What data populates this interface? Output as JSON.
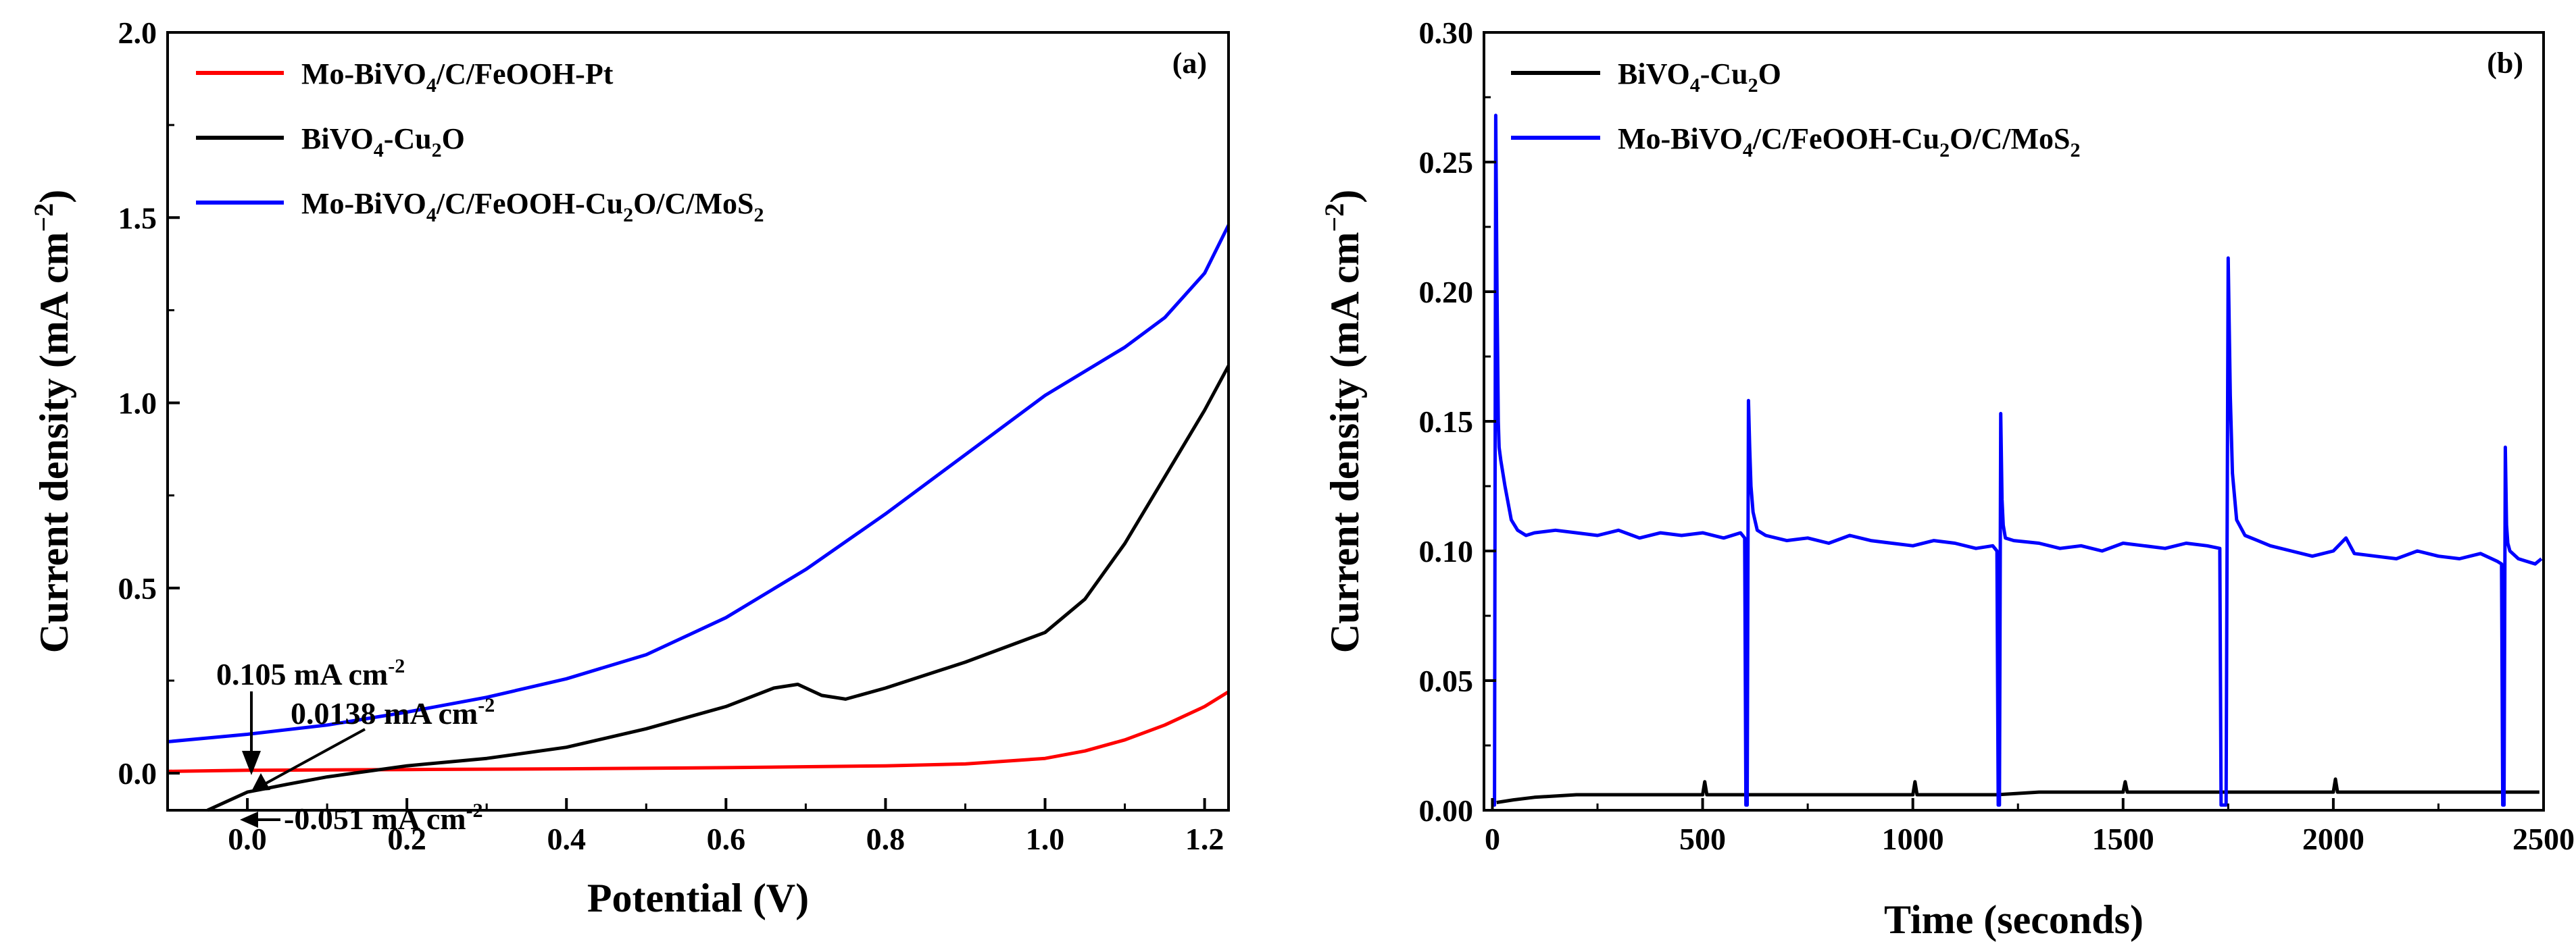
{
  "chart_data": [
    {
      "panel": "(a)",
      "type": "line",
      "xlabel": "Potential (V)",
      "ylabel": "Current density (mA cm−2)",
      "xlim": [
        -0.1,
        1.23
      ],
      "ylim": [
        -0.1,
        2.0
      ],
      "xticks": [
        0.0,
        0.2,
        0.4,
        0.6,
        0.8,
        1.0,
        1.2
      ],
      "xtick_labels": [
        "0.0",
        "0.2",
        "0.4",
        "0.6",
        "0.8",
        "1.0",
        "1.2"
      ],
      "yticks": [
        0.0,
        0.5,
        1.0,
        1.5,
        2.0
      ],
      "ytick_labels": [
        "0.0",
        "0.5",
        "1.0",
        "1.5",
        "2.0"
      ],
      "legend_position": "top-left",
      "series": [
        {
          "name": "Mo-BiVO4/C/FeOOH-Pt",
          "color": "#ff0000",
          "x": [
            -0.1,
            0.0,
            0.2,
            0.4,
            0.6,
            0.8,
            0.9,
            1.0,
            1.05,
            1.1,
            1.15,
            1.2,
            1.23
          ],
          "y": [
            0.005,
            0.008,
            0.01,
            0.012,
            0.015,
            0.02,
            0.025,
            0.04,
            0.06,
            0.09,
            0.13,
            0.18,
            0.22
          ]
        },
        {
          "name": "BiVO4-Cu2O",
          "color": "#000000",
          "x": [
            -0.05,
            0.0,
            0.05,
            0.1,
            0.2,
            0.3,
            0.4,
            0.5,
            0.6,
            0.66,
            0.69,
            0.72,
            0.75,
            0.8,
            0.9,
            1.0,
            1.05,
            1.1,
            1.15,
            1.2,
            1.23
          ],
          "y": [
            -0.1,
            -0.051,
            -0.03,
            -0.01,
            0.02,
            0.04,
            0.07,
            0.12,
            0.18,
            0.23,
            0.24,
            0.21,
            0.2,
            0.23,
            0.3,
            0.38,
            0.47,
            0.62,
            0.8,
            0.98,
            1.1
          ]
        },
        {
          "name": "Mo-BiVO4/C/FeOOH-Cu2O/C/MoS2",
          "color": "#0000ff",
          "x": [
            -0.1,
            -0.05,
            0.0,
            0.1,
            0.2,
            0.3,
            0.4,
            0.5,
            0.6,
            0.7,
            0.8,
            0.9,
            1.0,
            1.1,
            1.15,
            1.2,
            1.23
          ],
          "y": [
            0.085,
            0.095,
            0.105,
            0.13,
            0.165,
            0.205,
            0.255,
            0.32,
            0.42,
            0.55,
            0.7,
            0.86,
            1.02,
            1.15,
            1.23,
            1.35,
            1.48
          ]
        }
      ],
      "annotations": {
        "a1": "0.105 mA cm",
        "a2": "0.0138 mA cm",
        "a3": "-0.051 mA cm"
      }
    },
    {
      "panel": "(b)",
      "type": "line",
      "xlabel": "Time (seconds)",
      "ylabel": "Current density (mA cm−2)",
      "xlim": [
        -20,
        2500
      ],
      "ylim": [
        0.0,
        0.3
      ],
      "xticks": [
        0,
        500,
        1000,
        1500,
        2000,
        2500
      ],
      "xtick_labels": [
        "0",
        "500",
        "1000",
        "1500",
        "2000",
        "2500"
      ],
      "yticks": [
        0.0,
        0.05,
        0.1,
        0.15,
        0.2,
        0.25,
        0.3
      ],
      "ytick_labels": [
        "0.00",
        "0.05",
        "0.10",
        "0.15",
        "0.20",
        "0.25",
        "0.30"
      ],
      "legend_position": "top-left",
      "series": [
        {
          "name": "BiVO4-Cu2O",
          "color": "#000000",
          "x": [
            10,
            50,
            100,
            200,
            300,
            400,
            500,
            505,
            510,
            600,
            700,
            800,
            900,
            1000,
            1005,
            1010,
            1100,
            1200,
            1300,
            1400,
            1500,
            1505,
            1510,
            1600,
            1700,
            1800,
            1900,
            2000,
            2005,
            2010,
            2100,
            2200,
            2300,
            2400,
            2490
          ],
          "y": [
            0.003,
            0.004,
            0.005,
            0.006,
            0.006,
            0.006,
            0.006,
            0.011,
            0.006,
            0.006,
            0.006,
            0.006,
            0.006,
            0.006,
            0.011,
            0.006,
            0.006,
            0.006,
            0.007,
            0.007,
            0.007,
            0.011,
            0.007,
            0.007,
            0.007,
            0.007,
            0.007,
            0.007,
            0.012,
            0.007,
            0.007,
            0.007,
            0.007,
            0.007,
            0.007
          ]
        },
        {
          "name": "Mo-BiVO4/C/FeOOH-Cu2O/C/MoS2",
          "color": "#0000ff",
          "x": [
            0,
            5,
            8,
            11,
            14,
            16,
            20,
            30,
            45,
            60,
            80,
            100,
            150,
            200,
            250,
            300,
            350,
            400,
            450,
            500,
            550,
            590,
            600,
            603,
            606,
            609,
            612,
            615,
            620,
            630,
            650,
            700,
            750,
            800,
            850,
            900,
            950,
            1000,
            1050,
            1100,
            1150,
            1190,
            1200,
            1203,
            1206,
            1209,
            1212,
            1215,
            1220,
            1240,
            1300,
            1350,
            1400,
            1450,
            1500,
            1550,
            1600,
            1650,
            1700,
            1730,
            1733,
            1736,
            1740,
            1745,
            1750,
            1755,
            1760,
            1770,
            1790,
            1820,
            1850,
            1900,
            1950,
            2000,
            2030,
            2050,
            2100,
            2150,
            2200,
            2250,
            2300,
            2350,
            2390,
            2400,
            2403,
            2406,
            2409,
            2412,
            2415,
            2420,
            2440,
            2460,
            2480,
            2495
          ],
          "y": [
            0.002,
            0.002,
            0.268,
            0.2,
            0.15,
            0.14,
            0.135,
            0.125,
            0.112,
            0.108,
            0.106,
            0.107,
            0.108,
            0.107,
            0.106,
            0.108,
            0.105,
            0.107,
            0.106,
            0.107,
            0.105,
            0.107,
            0.105,
            0.002,
            0.002,
            0.158,
            0.14,
            0.125,
            0.115,
            0.108,
            0.106,
            0.104,
            0.105,
            0.103,
            0.106,
            0.104,
            0.103,
            0.102,
            0.104,
            0.103,
            0.101,
            0.102,
            0.1,
            0.002,
            0.002,
            0.153,
            0.12,
            0.11,
            0.105,
            0.104,
            0.103,
            0.101,
            0.102,
            0.1,
            0.103,
            0.102,
            0.101,
            0.103,
            0.102,
            0.101,
            0.002,
            0.002,
            0.002,
            0.002,
            0.213,
            0.16,
            0.13,
            0.112,
            0.106,
            0.104,
            0.102,
            0.1,
            0.098,
            0.1,
            0.105,
            0.099,
            0.098,
            0.097,
            0.1,
            0.098,
            0.097,
            0.099,
            0.096,
            0.095,
            0.002,
            0.002,
            0.14,
            0.11,
            0.103,
            0.1,
            0.097,
            0.096,
            0.095,
            0.097
          ]
        }
      ]
    }
  ]
}
